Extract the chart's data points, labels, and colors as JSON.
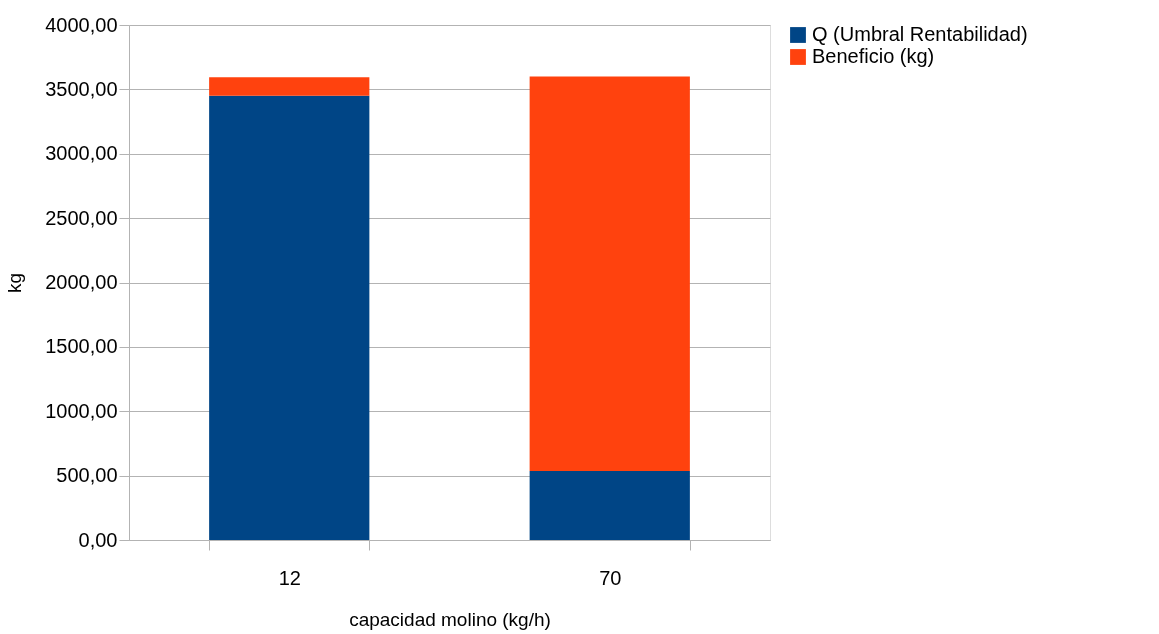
{
  "chart_data": {
    "type": "bar",
    "stacked": true,
    "xlabel": "capacidad molino (kg/h)",
    "ylabel": "kg",
    "categories": [
      "12",
      "70"
    ],
    "series": [
      {
        "name": "Q (Umbral Rentabilidad)",
        "color": "#004586",
        "values": [
          3450,
          535
        ]
      },
      {
        "name": "Beneficio (kg)",
        "color": "#ff420e",
        "values": [
          145,
          3065
        ]
      }
    ],
    "ylim": [
      0,
      4000
    ],
    "yticks": [
      {
        "value": 0,
        "label": "0,00"
      },
      {
        "value": 500,
        "label": "500,00"
      },
      {
        "value": 1000,
        "label": "1000,00"
      },
      {
        "value": 1500,
        "label": "1500,00"
      },
      {
        "value": 2000,
        "label": "2000,00"
      },
      {
        "value": 2500,
        "label": "2500,00"
      },
      {
        "value": 3000,
        "label": "3000,00"
      },
      {
        "value": 3500,
        "label": "3500,00"
      },
      {
        "value": 4000,
        "label": "4000,00"
      }
    ],
    "grid": "y",
    "legend": "right"
  }
}
